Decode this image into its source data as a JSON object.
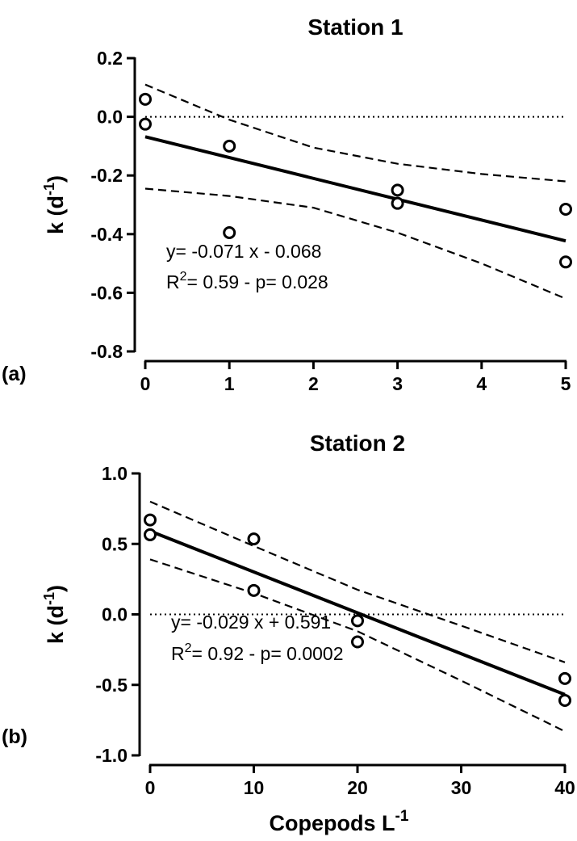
{
  "figure": {
    "xlabel": "Copepods L",
    "xlabel_sup": "-1"
  },
  "chart_data": [
    {
      "type": "scatter",
      "panel": "(a)",
      "title": "Station 1",
      "ylabel": "k (d",
      "ylabel_sup": "-1",
      "ylabel_close": ")",
      "xlim": [
        0,
        5
      ],
      "ylim": [
        -0.8,
        0.2
      ],
      "xticks": [
        0,
        1,
        2,
        3,
        4,
        5
      ],
      "xtick_labels": [
        "0",
        "1",
        "2",
        "3",
        "4",
        "5"
      ],
      "yticks": [
        -0.8,
        -0.6,
        -0.4,
        -0.2,
        0.0,
        0.2
      ],
      "ytick_labels": [
        "-0.8",
        "-0.6",
        "-0.4",
        "-0.2",
        "0.0",
        "0.2"
      ],
      "points": [
        [
          0,
          0.06
        ],
        [
          0,
          -0.025
        ],
        [
          1,
          -0.1
        ],
        [
          1,
          -0.395
        ],
        [
          3,
          -0.25
        ],
        [
          3,
          -0.295
        ],
        [
          5,
          -0.315
        ],
        [
          5,
          -0.495
        ]
      ],
      "fit": {
        "slope": -0.071,
        "intercept": -0.068,
        "x_range": [
          0,
          5
        ]
      },
      "ci_upper": [
        [
          0,
          0.11
        ],
        [
          1,
          -0.01
        ],
        [
          2,
          -0.105
        ],
        [
          3,
          -0.16
        ],
        [
          4,
          -0.195
        ],
        [
          5,
          -0.22
        ]
      ],
      "ci_lower": [
        [
          0,
          -0.245
        ],
        [
          1,
          -0.27
        ],
        [
          2,
          -0.31
        ],
        [
          3,
          -0.395
        ],
        [
          4,
          -0.5
        ],
        [
          5,
          -0.62
        ]
      ],
      "zero_line": 0,
      "annotation_line1": "y= -0.071 x - 0.068",
      "annotation_r": "R",
      "annotation_r_sup": "2",
      "annotation_line2_rest": "= 0.59 - p= 0.028"
    },
    {
      "type": "scatter",
      "panel": "(b)",
      "title": "Station 2",
      "ylabel": "k (d",
      "ylabel_sup": "-1",
      "ylabel_close": ")",
      "xlim": [
        0,
        40
      ],
      "ylim": [
        -1.0,
        1.0
      ],
      "xticks": [
        0,
        10,
        20,
        30,
        40
      ],
      "xtick_labels": [
        "0",
        "10",
        "20",
        "30",
        "40"
      ],
      "yticks": [
        -1.0,
        -0.5,
        0.0,
        0.5,
        1.0
      ],
      "ytick_labels": [
        "-1.0",
        "-0.5",
        "0.0",
        "0.5",
        "1.0"
      ],
      "points": [
        [
          0,
          0.67
        ],
        [
          0,
          0.565
        ],
        [
          10,
          0.535
        ],
        [
          10,
          0.17
        ],
        [
          20,
          -0.045
        ],
        [
          20,
          -0.195
        ],
        [
          40,
          -0.455
        ],
        [
          40,
          -0.61
        ]
      ],
      "fit": {
        "slope": -0.029,
        "intercept": 0.591,
        "x_range": [
          0,
          40
        ]
      },
      "ci_upper": [
        [
          0,
          0.8
        ],
        [
          10,
          0.485
        ],
        [
          20,
          0.175
        ],
        [
          30,
          -0.08
        ],
        [
          40,
          -0.34
        ]
      ],
      "ci_lower": [
        [
          0,
          0.39
        ],
        [
          10,
          0.15
        ],
        [
          20,
          -0.12
        ],
        [
          30,
          -0.47
        ],
        [
          40,
          -0.83
        ]
      ],
      "zero_line": 0,
      "annotation_line1": "y= -0.029 x + 0.591",
      "annotation_r": "R",
      "annotation_r_sup": "2",
      "annotation_line2_rest": "= 0.92 - p= 0.0002"
    }
  ]
}
